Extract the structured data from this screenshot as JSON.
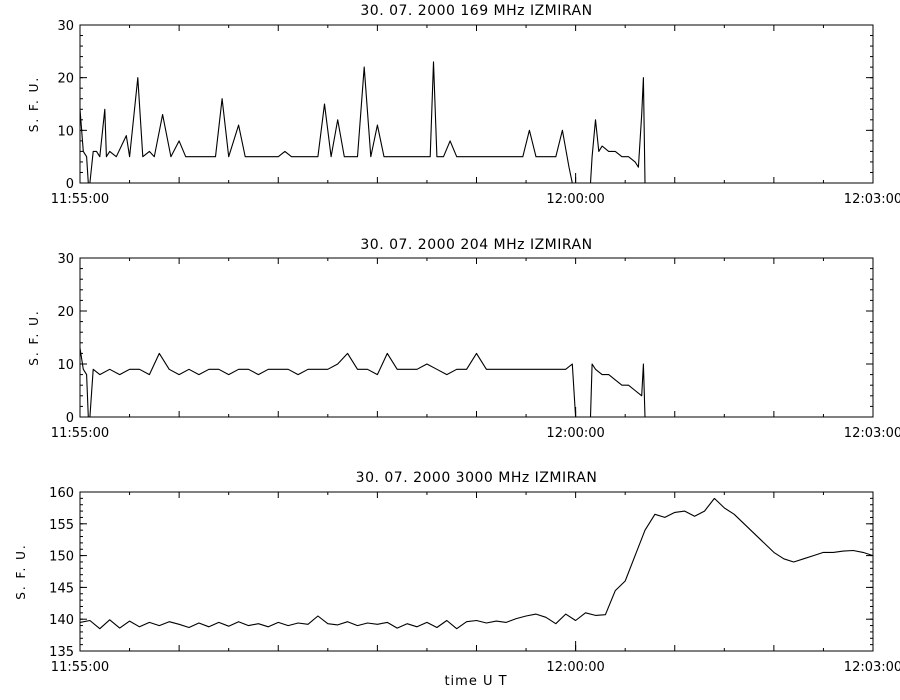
{
  "figure_xlabel": "time  U T",
  "chart_data": [
    {
      "type": "line",
      "title": "30.  07.  2000    169 MHz    IZMIRAN",
      "ylabel": "S. F. U.",
      "xlabel": "",
      "xlim": [
        "11:55:00",
        "12:03:00"
      ],
      "ylim": [
        0,
        30
      ],
      "yticks": [
        0,
        10,
        20,
        30
      ],
      "xtick_labels": [
        "11:55:00",
        "12:00:00",
        "12:03:00"
      ],
      "grid": false,
      "series": [
        {
          "values_note_omitted": true,
          "x": [
            "11:55:00",
            "11:55:02",
            "11:55:04",
            "11:55:05",
            "11:55:06",
            "11:55:08",
            "11:55:10",
            "11:55:12",
            "11:55:15",
            "11:55:16",
            "11:55:18",
            "11:55:22",
            "11:55:28",
            "11:55:30",
            "11:55:35",
            "11:55:38",
            "11:55:42",
            "11:55:45",
            "11:55:50",
            "11:55:55",
            "11:56:00",
            "11:56:04",
            "11:56:08",
            "11:56:12",
            "11:56:14",
            "11:56:18",
            "11:56:22",
            "11:56:26",
            "11:56:30",
            "11:56:36",
            "11:56:40",
            "11:56:44",
            "11:56:48",
            "11:56:52",
            "11:56:56",
            "11:57:00",
            "11:57:04",
            "11:57:08",
            "11:57:12",
            "11:57:16",
            "11:57:20",
            "11:57:24",
            "11:57:28",
            "11:57:32",
            "11:57:36",
            "11:57:40",
            "11:57:44",
            "11:57:48",
            "11:57:52",
            "11:57:56",
            "11:58:00",
            "11:58:04",
            "11:58:08",
            "11:58:12",
            "11:58:16",
            "11:58:20",
            "11:58:24",
            "11:58:28",
            "11:58:32",
            "11:58:34",
            "11:58:36",
            "11:58:40",
            "11:58:44",
            "11:58:48",
            "11:58:52",
            "11:58:56",
            "11:59:00",
            "11:59:04",
            "11:59:08",
            "11:59:12",
            "11:59:16",
            "11:59:20",
            "11:59:24",
            "11:59:28",
            "11:59:32",
            "11:59:36",
            "11:59:40",
            "11:59:44",
            "11:59:48",
            "11:59:52",
            "11:59:56",
            "11:59:58",
            "12:00:00",
            "12:00:01",
            "12:00:09",
            "12:00:10",
            "12:00:12",
            "12:00:14",
            "12:00:16",
            "12:00:20",
            "12:00:24",
            "12:00:28",
            "12:00:32",
            "12:00:36",
            "12:00:38",
            "12:00:40",
            "12:00:41",
            "12:00:42",
            "12:03:00"
          ],
          "y": [
            14,
            6,
            5,
            0,
            0,
            6,
            6,
            5,
            14,
            5,
            6,
            5,
            9,
            5,
            20,
            5,
            6,
            5,
            13,
            5,
            8,
            5,
            5,
            5,
            5,
            5,
            5,
            16,
            5,
            11,
            5,
            5,
            5,
            5,
            5,
            5,
            6,
            5,
            5,
            5,
            5,
            5,
            15,
            5,
            12,
            5,
            5,
            5,
            22,
            5,
            11,
            5,
            5,
            5,
            5,
            5,
            5,
            5,
            5,
            23,
            5,
            5,
            8,
            5,
            5,
            5,
            5,
            5,
            5,
            5,
            5,
            5,
            5,
            5,
            10,
            5,
            5,
            5,
            5,
            10,
            3,
            0,
            0,
            0,
            0,
            5,
            12,
            6,
            7,
            6,
            6,
            5,
            5,
            4,
            3,
            13,
            20,
            0,
            0
          ]
        }
      ]
    },
    {
      "type": "line",
      "title": "30.  07.  2000    204 MHz    IZMIRAN",
      "ylabel": "S. F. U.",
      "xlabel": "",
      "xlim": [
        "11:55:00",
        "12:03:00"
      ],
      "ylim": [
        0,
        30
      ],
      "yticks": [
        0,
        10,
        20,
        30
      ],
      "xtick_labels": [
        "11:55:00",
        "12:00:00",
        "12:03:00"
      ],
      "grid": false,
      "series": [
        {
          "x": [
            "11:55:00",
            "11:55:02",
            "11:55:04",
            "11:55:05",
            "11:55:06",
            "11:55:08",
            "11:55:12",
            "11:55:18",
            "11:55:24",
            "11:55:30",
            "11:55:36",
            "11:55:42",
            "11:55:48",
            "11:55:54",
            "11:56:00",
            "11:56:06",
            "11:56:12",
            "11:56:18",
            "11:56:24",
            "11:56:30",
            "11:56:36",
            "11:56:42",
            "11:56:48",
            "11:56:54",
            "11:57:00",
            "11:57:06",
            "11:57:12",
            "11:57:18",
            "11:57:24",
            "11:57:30",
            "11:57:36",
            "11:57:42",
            "11:57:48",
            "11:57:54",
            "11:58:00",
            "11:58:06",
            "11:58:12",
            "11:58:18",
            "11:58:24",
            "11:58:30",
            "11:58:36",
            "11:58:42",
            "11:58:48",
            "11:58:54",
            "11:59:00",
            "11:59:06",
            "11:59:12",
            "11:59:18",
            "11:59:24",
            "11:59:30",
            "11:59:36",
            "11:59:42",
            "11:59:48",
            "11:59:54",
            "11:59:58",
            "12:00:00",
            "12:00:01",
            "12:00:09",
            "12:00:10",
            "12:00:12",
            "12:00:16",
            "12:00:20",
            "12:00:24",
            "12:00:28",
            "12:00:32",
            "12:00:36",
            "12:00:40",
            "12:00:41",
            "12:00:42",
            "12:03:00"
          ],
          "y": [
            13,
            9,
            8,
            0,
            0,
            9,
            8,
            9,
            8,
            9,
            9,
            8,
            12,
            9,
            8,
            9,
            8,
            9,
            9,
            8,
            9,
            9,
            8,
            9,
            9,
            9,
            8,
            9,
            9,
            9,
            10,
            12,
            9,
            9,
            8,
            12,
            9,
            9,
            9,
            10,
            9,
            8,
            9,
            9,
            12,
            9,
            9,
            9,
            9,
            9,
            9,
            9,
            9,
            9,
            10,
            0,
            0,
            0,
            10,
            9,
            8,
            8,
            7,
            6,
            6,
            5,
            4,
            10,
            0,
            0
          ]
        }
      ]
    },
    {
      "type": "line",
      "title": "30.  07.  2000    3000 MHz    IZMIRAN",
      "ylabel": "S. F. U.",
      "xlabel": "time  U T",
      "xlim": [
        "11:55:00",
        "12:03:00"
      ],
      "ylim": [
        135,
        160
      ],
      "yticks": [
        135,
        140,
        145,
        150,
        155,
        160
      ],
      "xtick_labels": [
        "11:55:00",
        "12:00:00",
        "12:03:00"
      ],
      "grid": false,
      "series": [
        {
          "x": [
            "11:55:00",
            "11:55:06",
            "11:55:12",
            "11:55:18",
            "11:55:24",
            "11:55:30",
            "11:55:36",
            "11:55:42",
            "11:55:48",
            "11:55:54",
            "11:56:00",
            "11:56:06",
            "11:56:12",
            "11:56:18",
            "11:56:24",
            "11:56:30",
            "11:56:36",
            "11:56:42",
            "11:56:48",
            "11:56:54",
            "11:57:00",
            "11:57:06",
            "11:57:12",
            "11:57:18",
            "11:57:24",
            "11:57:30",
            "11:57:36",
            "11:57:42",
            "11:57:48",
            "11:57:54",
            "11:58:00",
            "11:58:06",
            "11:58:12",
            "11:58:18",
            "11:58:24",
            "11:58:30",
            "11:58:36",
            "11:58:42",
            "11:58:48",
            "11:58:54",
            "11:59:00",
            "11:59:06",
            "11:59:12",
            "11:59:18",
            "11:59:24",
            "11:59:30",
            "11:59:36",
            "11:59:42",
            "11:59:48",
            "11:59:54",
            "12:00:00",
            "12:00:06",
            "12:00:12",
            "12:00:18",
            "12:00:24",
            "12:00:30",
            "12:00:36",
            "12:00:42",
            "12:00:48",
            "12:00:54",
            "12:01:00",
            "12:01:06",
            "12:01:12",
            "12:01:18",
            "12:01:24",
            "12:01:30",
            "12:01:36",
            "12:01:42",
            "12:01:48",
            "12:01:54",
            "12:02:00",
            "12:02:06",
            "12:02:12",
            "12:02:18",
            "12:02:24",
            "12:02:30",
            "12:02:36",
            "12:02:42",
            "12:02:48",
            "12:02:54",
            "12:03:00"
          ],
          "y": [
            139.5,
            139.8,
            138.5,
            139.9,
            138.6,
            139.7,
            138.8,
            139.5,
            139.0,
            139.6,
            139.2,
            138.7,
            139.4,
            138.8,
            139.5,
            138.9,
            139.6,
            139.0,
            139.3,
            138.8,
            139.5,
            139.0,
            139.4,
            139.2,
            140.5,
            139.3,
            139.1,
            139.6,
            139.0,
            139.4,
            139.2,
            139.5,
            138.6,
            139.3,
            138.8,
            139.5,
            138.7,
            139.8,
            138.5,
            139.6,
            139.8,
            139.4,
            139.7,
            139.5,
            140.1,
            140.5,
            140.8,
            140.3,
            139.3,
            140.8,
            139.8,
            141.0,
            140.6,
            140.7,
            144.5,
            146.0,
            150.0,
            154.0,
            156.5,
            156.0,
            156.8,
            157.0,
            156.2,
            157.0,
            159.0,
            157.5,
            156.5,
            155.0,
            153.5,
            152.0,
            150.5,
            149.5,
            149.0,
            149.5,
            150.0,
            150.5,
            150.5,
            150.7,
            150.8,
            150.5,
            150.0
          ]
        }
      ]
    }
  ]
}
